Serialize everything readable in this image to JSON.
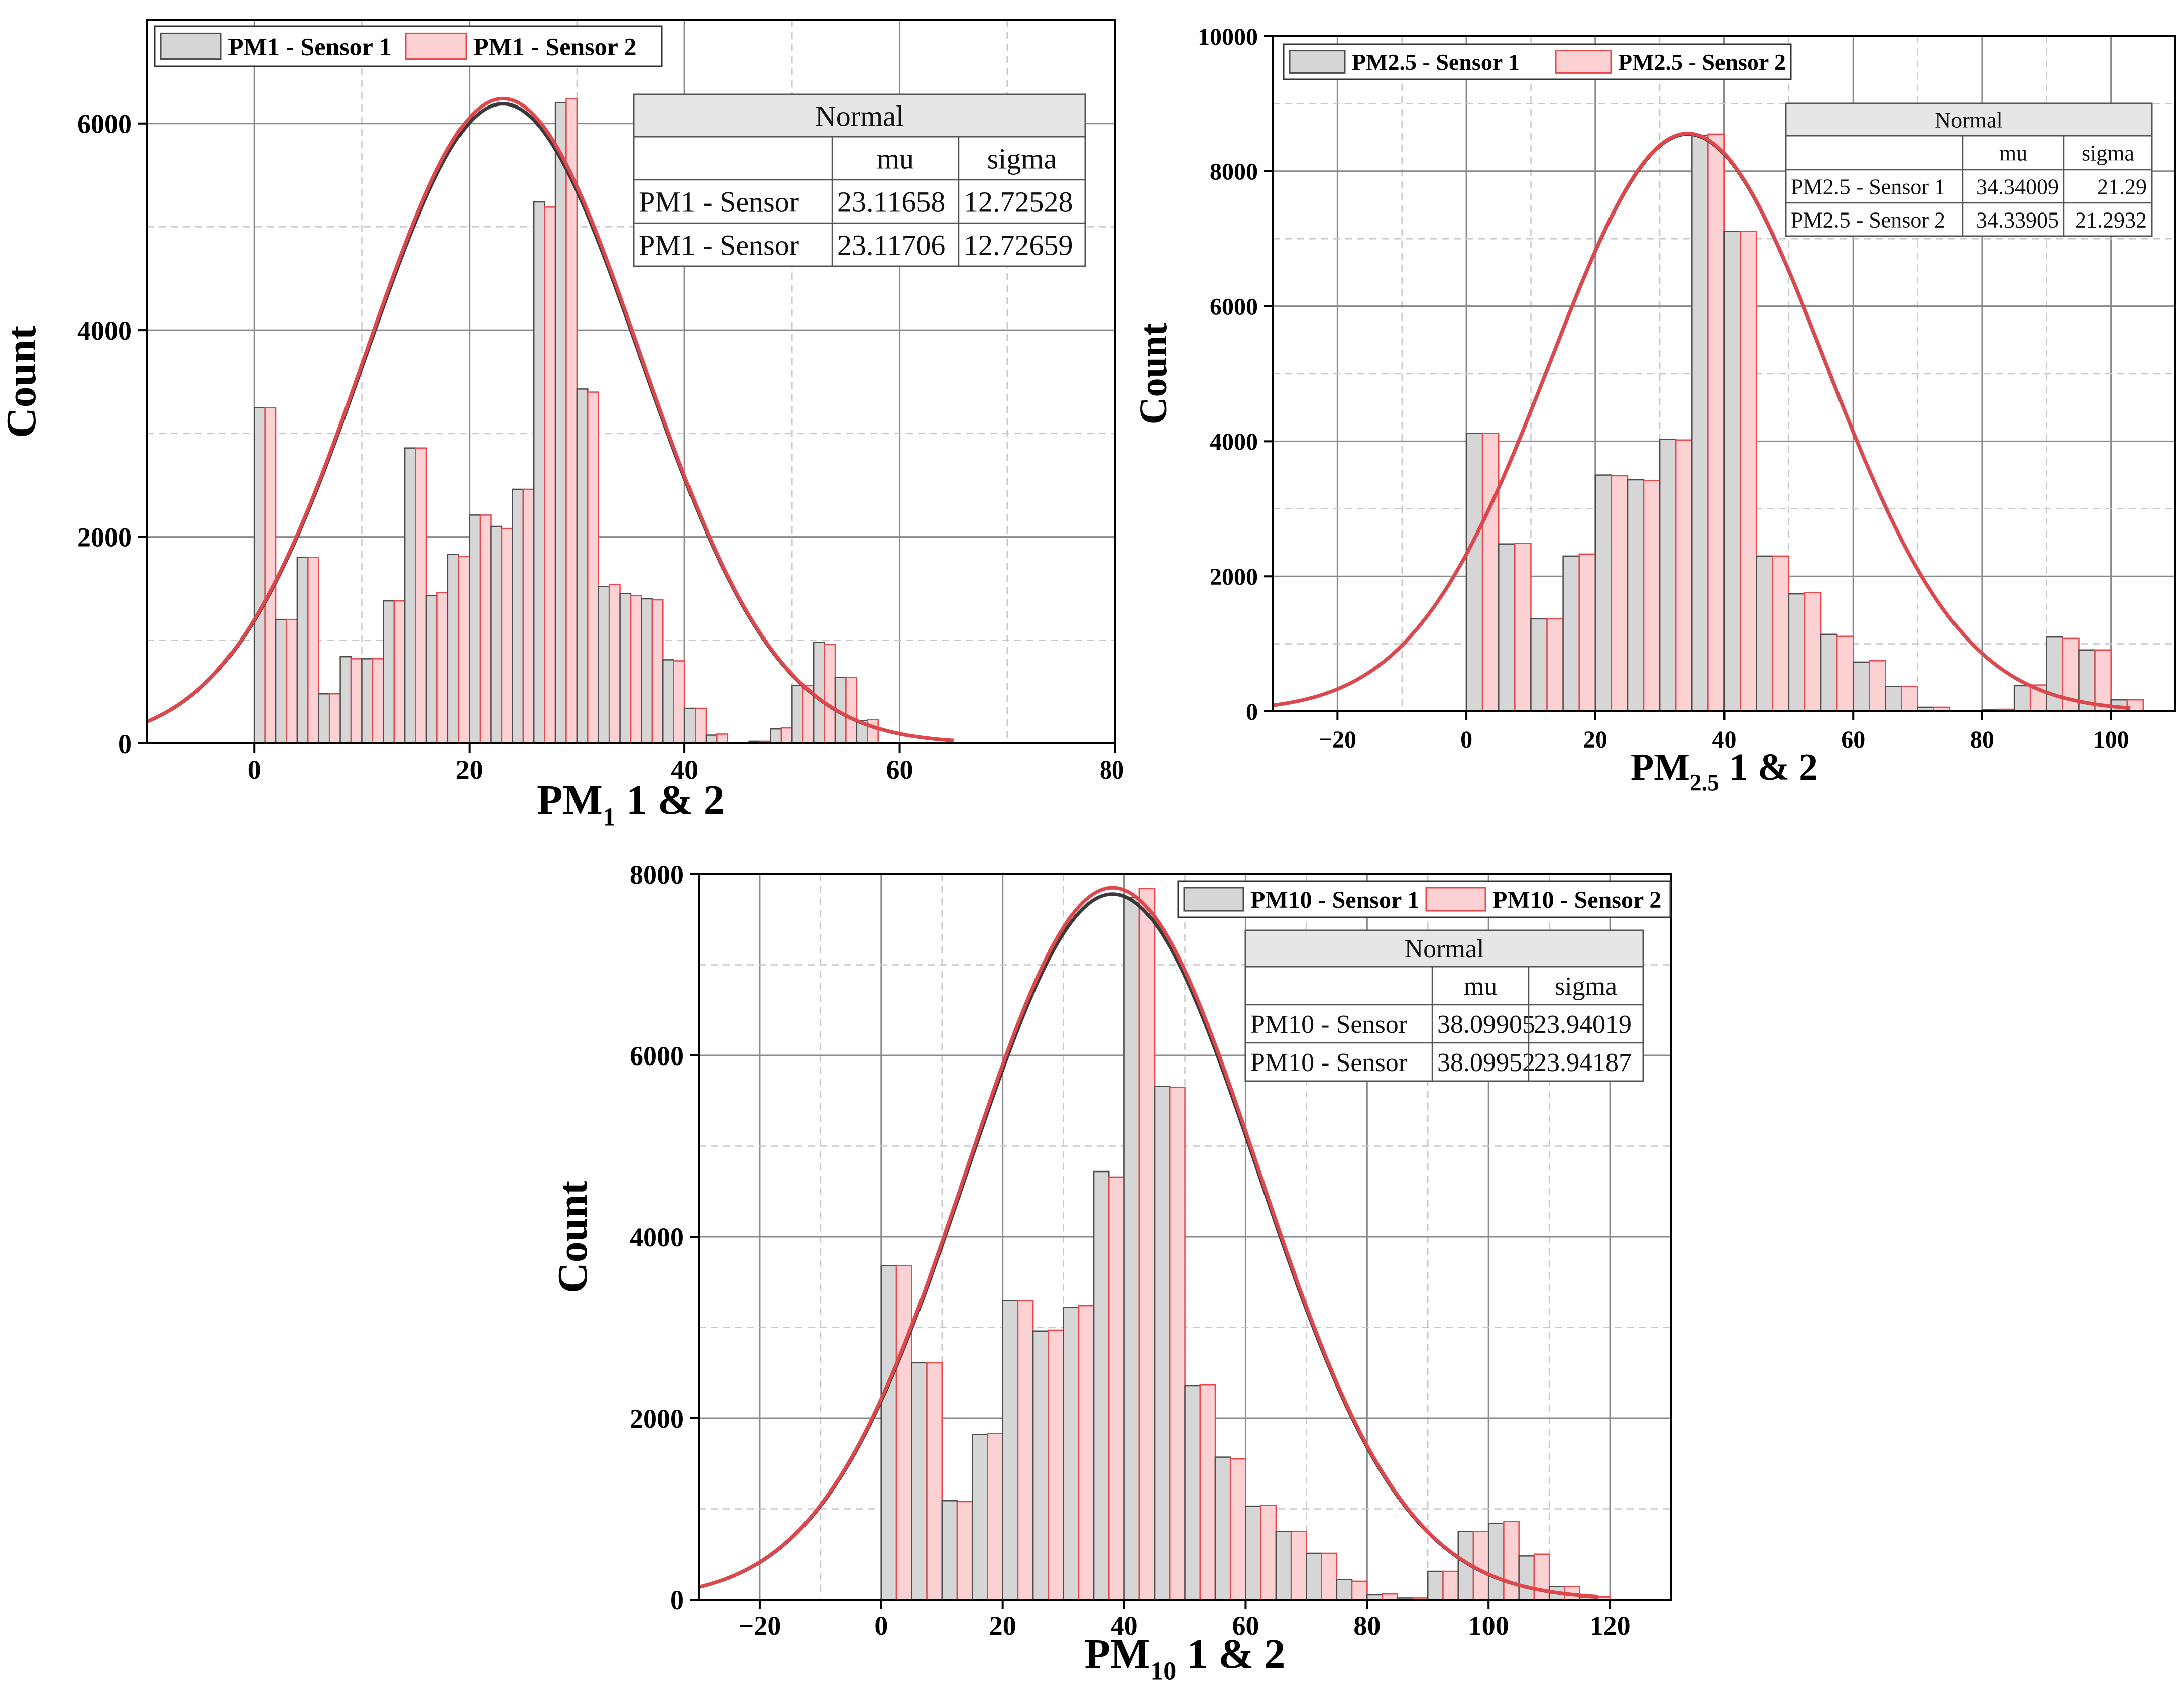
{
  "colors": {
    "sensor1_fill": "#d6d6d6",
    "sensor1_stroke": "#4d4d4d",
    "sensor2_fill": "#fcd1d3",
    "sensor2_stroke": "#e8474c",
    "fit_sensor1": "#3a3a3a",
    "fit_sensor2": "#e0474c",
    "grid_major": "#8a8a8a",
    "grid_minor": "#c8c8c8",
    "table_header": "#e6e6e6"
  },
  "chart_data": [
    {
      "id": "pm1",
      "type": "bar",
      "xlabel_main": "PM",
      "xlabel_sub": "1",
      "xlabel_rest": " 1 & 2",
      "ylabel": "Count",
      "xlim": [
        -10,
        80
      ],
      "ylim": [
        0,
        7000
      ],
      "xticks": [
        0,
        20,
        40,
        60
      ],
      "xtick_labels": [
        "0",
        "20",
        "40",
        "60"
      ],
      "clipped_xtick_label": "80",
      "yticks": [
        0,
        2000,
        4000,
        6000
      ],
      "ytick_labels": [
        "0",
        "2000",
        "4000",
        "6000"
      ],
      "bin_start": 0,
      "bin_width": 2,
      "legend": [
        "PM1 - Sensor 1",
        "PM1 - Sensor 2"
      ],
      "series": [
        {
          "name": "PM1 - Sensor 1",
          "values": [
            3250,
            1200,
            1800,
            480,
            840,
            820,
            1380,
            2860,
            1430,
            1830,
            2210,
            2100,
            2460,
            5240,
            6200,
            3430,
            1520,
            1450,
            1400,
            810,
            340,
            80,
            0,
            20,
            140,
            560,
            980,
            640,
            220,
            0
          ]
        },
        {
          "name": "PM1 - Sensor 2",
          "values": [
            3250,
            1200,
            1800,
            480,
            820,
            820,
            1380,
            2860,
            1460,
            1810,
            2210,
            2080,
            2460,
            5190,
            6240,
            3400,
            1540,
            1430,
            1390,
            800,
            340,
            90,
            0,
            20,
            150,
            560,
            960,
            640,
            230,
            0
          ]
        }
      ],
      "fits": [
        {
          "name": "PM1 - Sensor 1",
          "mu": 23.11658,
          "sigma": 12.72528,
          "peak": 6190
        },
        {
          "name": "PM1 - Sensor 2",
          "mu": 23.11706,
          "sigma": 12.72659,
          "peak": 6240
        }
      ],
      "fit_xrange": [
        -10,
        65
      ],
      "table": {
        "title": "Normal",
        "headers": [
          "",
          "mu",
          "sigma"
        ],
        "rows": [
          [
            "PM1 - Sensor",
            "23.11658",
            "12.72528"
          ],
          [
            "PM1 - Sensor",
            "23.11706",
            "12.72659"
          ]
        ]
      }
    },
    {
      "id": "pm25",
      "type": "bar",
      "xlabel_main": "PM",
      "xlabel_sub": "2.5",
      "xlabel_rest": " 1 & 2",
      "ylabel": "Count",
      "xlim": [
        -30,
        110
      ],
      "ylim": [
        0,
        10000
      ],
      "xticks": [
        -20,
        0,
        20,
        40,
        60,
        80,
        100
      ],
      "xtick_labels": [
        "−20",
        "0",
        "20",
        "40",
        "60",
        "80",
        "100"
      ],
      "yticks": [
        0,
        2000,
        4000,
        6000,
        8000,
        10000
      ],
      "ytick_labels": [
        "0",
        "2000",
        "4000",
        "6000",
        "8000",
        "10000"
      ],
      "bin_start": 0,
      "bin_width": 5,
      "legend": [
        "PM2.5 - Sensor 1",
        "PM2.5 - Sensor 2"
      ],
      "series": [
        {
          "name": "PM2.5 - Sensor 1",
          "values": [
            4120,
            2480,
            1370,
            2300,
            3500,
            3430,
            4030,
            8530,
            7110,
            2300,
            1740,
            1140,
            730,
            370,
            60,
            0,
            20,
            380,
            1100,
            910,
            170
          ]
        },
        {
          "name": "PM2.5 - Sensor 2",
          "values": [
            4120,
            2490,
            1370,
            2330,
            3490,
            3420,
            4020,
            8550,
            7110,
            2300,
            1760,
            1110,
            750,
            370,
            60,
            0,
            30,
            390,
            1080,
            910,
            170
          ]
        }
      ],
      "fits": [
        {
          "name": "PM2.5 - Sensor 1",
          "mu": 34.34009,
          "sigma": 21.29,
          "peak": 8550
        },
        {
          "name": "PM2.5 - Sensor 2",
          "mu": 34.33905,
          "sigma": 21.2932,
          "peak": 8560
        }
      ],
      "fit_xrange": [
        -30,
        103
      ],
      "table": {
        "title": "Normal",
        "headers": [
          "",
          "mu",
          "sigma"
        ],
        "rows": [
          [
            "PM2.5 - Sensor 1",
            "34.34009",
            "21.29"
          ],
          [
            "PM2.5 - Sensor 2",
            "34.33905",
            "21.2932"
          ]
        ]
      }
    },
    {
      "id": "pm10",
      "type": "bar",
      "xlabel_main": "PM",
      "xlabel_sub": "10",
      "xlabel_rest": " 1 & 2",
      "ylabel": "Count",
      "xlim": [
        -30,
        130
      ],
      "ylim": [
        0,
        8000
      ],
      "xticks": [
        -20,
        0,
        20,
        40,
        60,
        80,
        100,
        120
      ],
      "xtick_labels": [
        "−20",
        "0",
        "20",
        "40",
        "60",
        "80",
        "100",
        "120"
      ],
      "yticks": [
        0,
        2000,
        4000,
        6000,
        8000
      ],
      "ytick_labels": [
        "0",
        "2000",
        "4000",
        "6000",
        "8000"
      ],
      "bin_start": 0,
      "bin_width": 5,
      "legend": [
        "PM10 - Sensor 1",
        "PM10 - Sensor 2"
      ],
      "series": [
        {
          "name": "PM10 - Sensor 1",
          "values": [
            3680,
            2610,
            1090,
            1820,
            3300,
            2960,
            3220,
            4720,
            7740,
            5660,
            2360,
            1570,
            1030,
            750,
            510,
            220,
            50,
            20,
            310,
            750,
            840,
            480,
            140,
            30
          ]
        },
        {
          "name": "PM10 - Sensor 2",
          "values": [
            3680,
            2610,
            1080,
            1830,
            3300,
            2970,
            3240,
            4660,
            7840,
            5650,
            2370,
            1550,
            1040,
            750,
            510,
            200,
            60,
            20,
            310,
            750,
            860,
            500,
            140,
            30
          ]
        }
      ],
      "fits": [
        {
          "name": "PM10 - Sensor 1",
          "mu": 38.09905,
          "sigma": 23.94019,
          "peak": 7780
        },
        {
          "name": "PM10 - Sensor 2",
          "mu": 38.09952,
          "sigma": 23.94187,
          "peak": 7850
        }
      ],
      "fit_xrange": [
        -30,
        118
      ],
      "table": {
        "title": "Normal",
        "headers": [
          "",
          "mu",
          "sigma"
        ],
        "rows": [
          [
            "PM10 - Sensor",
            "38.09905",
            "23.94019"
          ],
          [
            "PM10 - Sensor",
            "38.09952",
            "23.94187"
          ]
        ]
      }
    }
  ]
}
